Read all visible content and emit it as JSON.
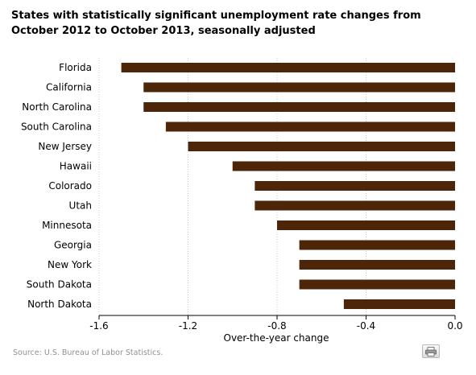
{
  "title": "States with statistically significant unemployment rate changes from October 2012 to October 2013, seasonally adjusted",
  "source": "Source: U.S. Bureau of Labor Statistics.",
  "print_icon": "printer-icon",
  "colors": {
    "bar": "#4d2508",
    "axis": "#000000",
    "grid": "#cccccc",
    "source_text": "#909090"
  },
  "chart_data": {
    "type": "bar",
    "orientation": "horizontal",
    "categories": [
      "Florida",
      "California",
      "North Carolina",
      "South Carolina",
      "New Jersey",
      "Hawaii",
      "Colorado",
      "Utah",
      "Minnesota",
      "Georgia",
      "New York",
      "South Dakota",
      "North Dakota"
    ],
    "values": [
      -1.5,
      -1.4,
      -1.4,
      -1.3,
      -1.2,
      -1.0,
      -0.9,
      -0.9,
      -0.8,
      -0.7,
      -0.7,
      -0.7,
      -0.5
    ],
    "xlabel": "Over-the-year change",
    "ylabel": "",
    "xlim": [
      -1.6,
      0.0
    ],
    "xticks": [
      "-1.6",
      "-1.2",
      "-0.8",
      "-0.4",
      "0.0"
    ],
    "grid": "vertical dotted"
  }
}
